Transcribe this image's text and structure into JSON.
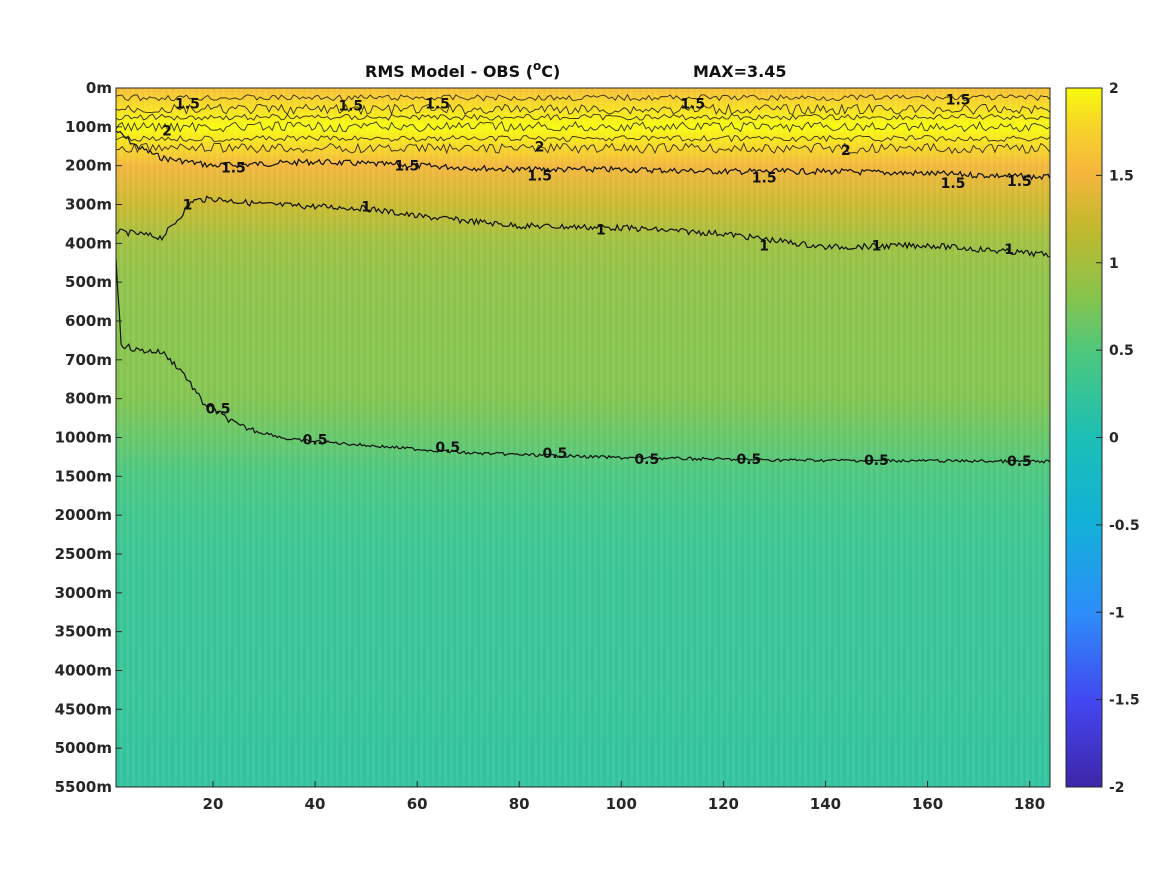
{
  "chart_data": {
    "type": "heatmap",
    "title": "RMS Model - OBS (",
    "title_sup": "o",
    "title_unit": "C)",
    "max_label": "MAX=3.45",
    "xlim": [
      1,
      184
    ],
    "xticks": [
      20,
      40,
      60,
      80,
      100,
      120,
      140,
      160,
      180
    ],
    "yticklabels": [
      "0m",
      "100m",
      "200m",
      "300m",
      "400m",
      "500m",
      "600m",
      "700m",
      "800m",
      "1000m",
      "1500m",
      "2000m",
      "2500m",
      "3000m",
      "3500m",
      "4000m",
      "4500m",
      "5000m",
      "5500m"
    ],
    "colorbar": {
      "ticks": [
        "2",
        "1.5",
        "1",
        "0.5",
        "0",
        "-0.5",
        "-1",
        "-1.5",
        "-2"
      ],
      "range": [
        -2,
        2
      ],
      "colormap": "parula"
    },
    "depth_profile": [
      {
        "level": "0m",
        "value": 1.6
      },
      {
        "level": "100m",
        "value": 2.05
      },
      {
        "level": "200m",
        "value": 1.5
      },
      {
        "level": "300m",
        "value": 1.25
      },
      {
        "level": "400m",
        "value": 0.95
      },
      {
        "level": "500m",
        "value": 0.85
      },
      {
        "level": "600m",
        "value": 0.82
      },
      {
        "level": "700m",
        "value": 0.8
      },
      {
        "level": "800m",
        "value": 0.78
      },
      {
        "level": "1000m",
        "value": 0.62
      },
      {
        "level": "1500m",
        "value": 0.45
      },
      {
        "level": "2000m",
        "value": 0.35
      },
      {
        "level": "2500m",
        "value": 0.3
      },
      {
        "level": "3000m",
        "value": 0.28
      },
      {
        "level": "3500m",
        "value": 0.27
      },
      {
        "level": "4000m",
        "value": 0.26
      },
      {
        "level": "4500m",
        "value": 0.25
      },
      {
        "level": "5000m",
        "value": 0.22
      },
      {
        "level": "5500m",
        "value": 0.2
      }
    ],
    "contours": [
      {
        "level": 1.5,
        "label": "1.5",
        "points": [
          [
            1,
            1.1
          ],
          [
            5,
            1.5
          ],
          [
            10,
            1.8
          ],
          [
            20,
            2.0
          ],
          [
            40,
            1.9
          ],
          [
            60,
            2.0
          ],
          [
            80,
            2.1
          ],
          [
            100,
            2.1
          ],
          [
            120,
            2.15
          ],
          [
            140,
            2.15
          ],
          [
            160,
            2.2
          ],
          [
            184,
            2.3
          ]
        ]
      },
      {
        "level": 1,
        "label": "1",
        "points": [
          [
            1,
            3.7
          ],
          [
            5,
            3.75
          ],
          [
            10,
            3.85
          ],
          [
            13,
            3.4
          ],
          [
            16,
            2.9
          ],
          [
            20,
            2.85
          ],
          [
            30,
            3.0
          ],
          [
            40,
            3.05
          ],
          [
            50,
            3.1
          ],
          [
            60,
            3.3
          ],
          [
            80,
            3.55
          ],
          [
            100,
            3.6
          ],
          [
            120,
            3.75
          ],
          [
            140,
            4.1
          ],
          [
            160,
            4.05
          ],
          [
            184,
            4.3
          ]
        ]
      },
      {
        "level": 0.5,
        "label": "0.5",
        "points": [
          [
            1,
            4.4
          ],
          [
            2,
            6.6
          ],
          [
            5,
            6.75
          ],
          [
            10,
            6.8
          ],
          [
            14,
            7.3
          ],
          [
            18,
            8.1
          ],
          [
            25,
            8.7
          ],
          [
            35,
            9.05
          ],
          [
            50,
            9.2
          ],
          [
            70,
            9.4
          ],
          [
            100,
            9.52
          ],
          [
            130,
            9.58
          ],
          [
            160,
            9.6
          ],
          [
            184,
            9.62
          ]
        ]
      }
    ],
    "contour_labels": [
      {
        "text": "1.5",
        "x": 15,
        "y": 0.4
      },
      {
        "text": "1.5",
        "x": 47,
        "y": 0.45
      },
      {
        "text": "1.5",
        "x": 64,
        "y": 0.4
      },
      {
        "text": "1.5",
        "x": 114,
        "y": 0.4
      },
      {
        "text": "1.5",
        "x": 166,
        "y": 0.3
      },
      {
        "text": "2",
        "x": 11,
        "y": 1.1
      },
      {
        "text": "2",
        "x": 84,
        "y": 1.5
      },
      {
        "text": "2",
        "x": 144,
        "y": 1.6
      },
      {
        "text": "1.5",
        "x": 24,
        "y": 2.05
      },
      {
        "text": "1.5",
        "x": 58,
        "y": 2.0
      },
      {
        "text": "1.5",
        "x": 84,
        "y": 2.25
      },
      {
        "text": "1.5",
        "x": 128,
        "y": 2.3
      },
      {
        "text": "1.5",
        "x": 165,
        "y": 2.45
      },
      {
        "text": "1.5",
        "x": 178,
        "y": 2.4
      },
      {
        "text": "1",
        "x": 15,
        "y": 3.0
      },
      {
        "text": "1",
        "x": 50,
        "y": 3.05
      },
      {
        "text": "1",
        "x": 96,
        "y": 3.65
      },
      {
        "text": "1",
        "x": 128,
        "y": 4.05
      },
      {
        "text": "1",
        "x": 150,
        "y": 4.05
      },
      {
        "text": "1",
        "x": 176,
        "y": 4.15
      },
      {
        "text": "0.5",
        "x": 21,
        "y": 8.25
      },
      {
        "text": "0.5",
        "x": 40,
        "y": 9.05
      },
      {
        "text": "0.5",
        "x": 66,
        "y": 9.25
      },
      {
        "text": "0.5",
        "x": 87,
        "y": 9.4
      },
      {
        "text": "0.5",
        "x": 105,
        "y": 9.55
      },
      {
        "text": "0.5",
        "x": 125,
        "y": 9.55
      },
      {
        "text": "0.5",
        "x": 150,
        "y": 9.58
      },
      {
        "text": "0.5",
        "x": 178,
        "y": 9.6
      }
    ]
  }
}
